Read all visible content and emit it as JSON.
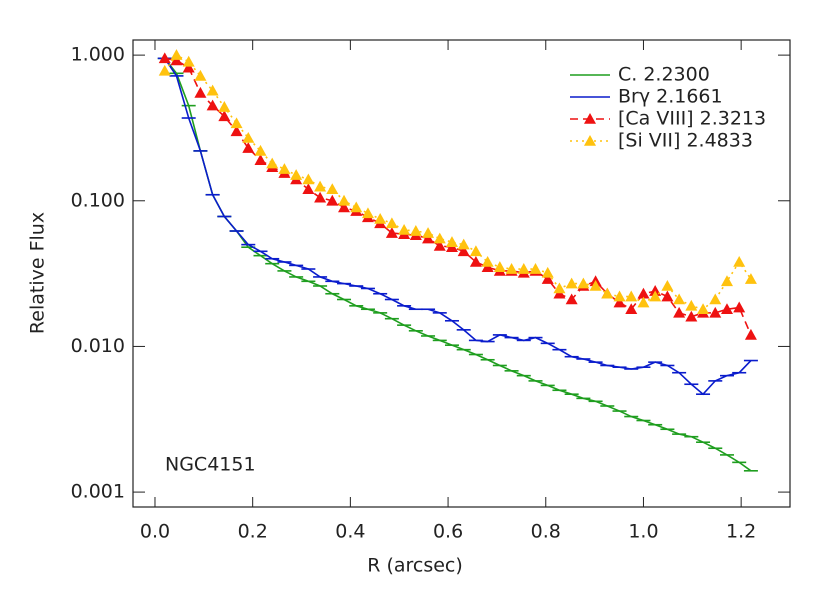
{
  "chart_data": {
    "type": "line",
    "annotation": "NGC4151",
    "x_label": "R (arcsec)",
    "y_label": "Relative Flux",
    "log_y": true,
    "legend": "upper right",
    "xlim": [
      -0.045,
      1.3
    ],
    "ylim": [
      0.00079,
      1.27
    ],
    "xticks": [
      {
        "value": 0,
        "label": "0.0"
      },
      0.2,
      0.4,
      0.6,
      0.8,
      {
        "value": 1,
        "label": "1.0"
      },
      1.2
    ],
    "yticks": [
      {
        "value": 0.001,
        "label": "0.001"
      },
      {
        "value": 0.01,
        "label": "0.010"
      },
      {
        "value": 0.1,
        "label": "0.100"
      },
      {
        "value": 1,
        "label": "1.000"
      }
    ],
    "x": [
      0.02,
      0.044,
      0.069,
      0.093,
      0.118,
      0.142,
      0.167,
      0.191,
      0.216,
      0.24,
      0.265,
      0.289,
      0.314,
      0.338,
      0.363,
      0.387,
      0.412,
      0.436,
      0.461,
      0.485,
      0.51,
      0.534,
      0.559,
      0.583,
      0.608,
      0.632,
      0.657,
      0.681,
      0.706,
      0.73,
      0.755,
      0.779,
      0.804,
      0.828,
      0.853,
      0.877,
      0.902,
      0.926,
      0.951,
      0.975,
      1.0,
      1.024,
      1.049,
      1.073,
      1.098,
      1.122,
      1.147,
      1.171,
      1.196,
      1.22
    ],
    "series": [
      {
        "name": "C. 2.2300",
        "color": "#1f9e1f",
        "line": "solid",
        "marker": "dash",
        "values": [
          0.95,
          0.75,
          0.45,
          0.22,
          0.11,
          0.078,
          0.062,
          0.048,
          0.042,
          0.037,
          0.033,
          0.03,
          0.028,
          0.026,
          0.023,
          0.021,
          0.019,
          0.018,
          0.017,
          0.0155,
          0.014,
          0.0128,
          0.0118,
          0.011,
          0.0102,
          0.0095,
          0.0088,
          0.0081,
          0.0074,
          0.0068,
          0.0063,
          0.0058,
          0.0054,
          0.005,
          0.0047,
          0.0044,
          0.0042,
          0.0039,
          0.0036,
          0.0033,
          0.0031,
          0.0029,
          0.0027,
          0.0025,
          0.0024,
          0.0022,
          0.002,
          0.0018,
          0.0016,
          0.0014
        ]
      },
      {
        "name": "Brγ 2.1661",
        "color": "#0a1ccc",
        "line": "solid",
        "marker": "dash",
        "values": [
          0.95,
          0.72,
          0.37,
          0.22,
          0.11,
          0.078,
          0.062,
          0.05,
          0.045,
          0.04,
          0.038,
          0.036,
          0.034,
          0.03,
          0.028,
          0.027,
          0.026,
          0.025,
          0.023,
          0.021,
          0.019,
          0.018,
          0.018,
          0.017,
          0.015,
          0.013,
          0.011,
          0.0108,
          0.012,
          0.0115,
          0.011,
          0.0115,
          0.0105,
          0.0095,
          0.0085,
          0.0082,
          0.0078,
          0.0074,
          0.0072,
          0.007,
          0.0072,
          0.0078,
          0.0074,
          0.0066,
          0.0055,
          0.0047,
          0.0058,
          0.0063,
          0.0066,
          0.008
        ]
      },
      {
        "name": "[Ca VIII] 2.3213",
        "color": "#ee1111",
        "line": "dashed",
        "marker": "triangle",
        "values": [
          0.95,
          0.92,
          0.82,
          0.55,
          0.45,
          0.38,
          0.3,
          0.23,
          0.19,
          0.17,
          0.155,
          0.14,
          0.12,
          0.105,
          0.1,
          0.09,
          0.085,
          0.077,
          0.07,
          0.06,
          0.059,
          0.058,
          0.055,
          0.049,
          0.048,
          0.045,
          0.038,
          0.035,
          0.033,
          0.033,
          0.032,
          0.033,
          0.029,
          0.023,
          0.021,
          0.026,
          0.028,
          0.023,
          0.02,
          0.018,
          0.023,
          0.024,
          0.022,
          0.017,
          0.016,
          0.017,
          0.017,
          0.018,
          0.0185,
          0.012
        ]
      },
      {
        "name": "[Si VII] 2.4833",
        "color": "#ffc20e",
        "line": "dotted",
        "marker": "triangle",
        "values": [
          0.78,
          1.0,
          0.9,
          0.72,
          0.57,
          0.44,
          0.34,
          0.27,
          0.22,
          0.18,
          0.165,
          0.15,
          0.14,
          0.125,
          0.12,
          0.1,
          0.09,
          0.082,
          0.075,
          0.07,
          0.063,
          0.062,
          0.06,
          0.055,
          0.052,
          0.05,
          0.045,
          0.038,
          0.035,
          0.034,
          0.034,
          0.034,
          0.032,
          0.025,
          0.027,
          0.027,
          0.026,
          0.023,
          0.022,
          0.022,
          0.02,
          0.022,
          0.026,
          0.021,
          0.019,
          0.018,
          0.021,
          0.028,
          0.038,
          0.029
        ]
      }
    ]
  }
}
